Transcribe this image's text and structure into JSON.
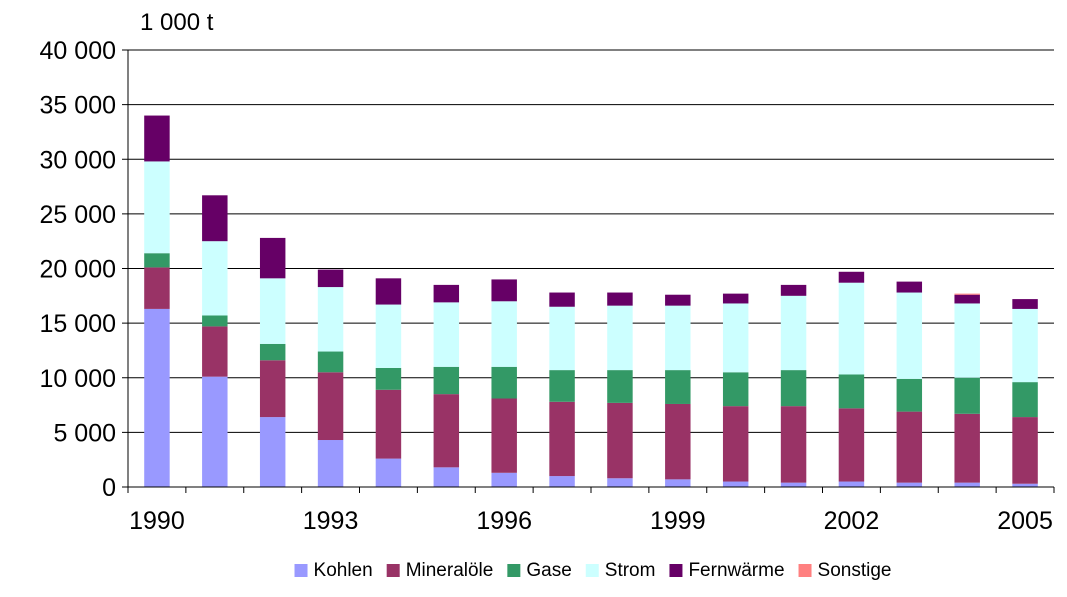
{
  "chart_data": {
    "type": "bar",
    "stacked": true,
    "ylabel": "1 000 t",
    "ylim": [
      0,
      40000
    ],
    "yticks": [
      0,
      5000,
      10000,
      15000,
      20000,
      25000,
      30000,
      35000,
      40000
    ],
    "ytick_labels": [
      "0",
      "5 000",
      "10 000",
      "15 000",
      "20 000",
      "25 000",
      "30 000",
      "35 000",
      "40 000"
    ],
    "grid": true,
    "legend_position": "bottom",
    "categories": [
      "1990",
      "1991",
      "1992",
      "1993",
      "1994",
      "1995",
      "1996",
      "1997",
      "1998",
      "1999",
      "2000",
      "2001",
      "2002",
      "2003",
      "2004",
      "2005"
    ],
    "x_tick_labels": [
      {
        "category": "1990",
        "label": "1990"
      },
      {
        "category": "1993",
        "label": "1993"
      },
      {
        "category": "1996",
        "label": "1996"
      },
      {
        "category": "1999",
        "label": "1999"
      },
      {
        "category": "2002",
        "label": "2002"
      },
      {
        "category": "2005",
        "label": "2005"
      }
    ],
    "series": [
      {
        "name": "Kohlen",
        "color": "#9999ff",
        "values": [
          16300,
          10100,
          6400,
          4300,
          2600,
          1800,
          1300,
          1000,
          800,
          700,
          500,
          400,
          500,
          400,
          400,
          300
        ]
      },
      {
        "name": "Mineralöle",
        "color": "#993366",
        "values": [
          3800,
          4600,
          5200,
          6200,
          6300,
          6700,
          6800,
          6800,
          6900,
          6900,
          6900,
          7000,
          6700,
          6500,
          6300,
          6100
        ]
      },
      {
        "name": "Gase",
        "color": "#339966",
        "values": [
          1300,
          1000,
          1500,
          1900,
          2000,
          2500,
          2900,
          2900,
          3000,
          3100,
          3100,
          3300,
          3100,
          3000,
          3300,
          3200
        ]
      },
      {
        "name": "Strom",
        "color": "#ccffff",
        "values": [
          8400,
          6800,
          6000,
          5900,
          5800,
          5900,
          6000,
          5800,
          5900,
          5900,
          6300,
          6800,
          8400,
          7900,
          6800,
          6700
        ]
      },
      {
        "name": "Fernwärme",
        "color": "#660066",
        "values": [
          4200,
          4200,
          3700,
          1600,
          2400,
          1600,
          2000,
          1300,
          1200,
          1000,
          900,
          1000,
          1000,
          1000,
          800,
          900
        ]
      },
      {
        "name": "Sonstige",
        "color": "#ff8080",
        "values": [
          0,
          0,
          0,
          0,
          0,
          0,
          0,
          0,
          0,
          0,
          0,
          0,
          0,
          0,
          100,
          0
        ]
      }
    ]
  }
}
